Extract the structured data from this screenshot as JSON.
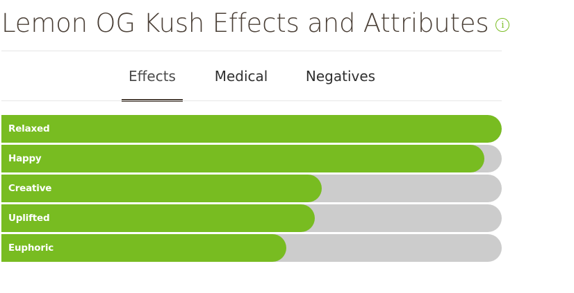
{
  "header": {
    "title": "Lemon OG Kush Effects and Attributes",
    "info_icon": "info-icon"
  },
  "tabs": [
    {
      "label": "Effects",
      "active": true
    },
    {
      "label": "Medical",
      "active": false
    },
    {
      "label": "Negatives",
      "active": false
    }
  ],
  "effects": [
    {
      "label": "Relaxed",
      "percent": 100
    },
    {
      "label": "Happy",
      "percent": 96.5
    },
    {
      "label": "Creative",
      "percent": 64
    },
    {
      "label": "Uplifted",
      "percent": 62.6
    },
    {
      "label": "Euphoric",
      "percent": 57
    }
  ],
  "colors": {
    "accent": "#78bc21",
    "track": "#cccccc",
    "title": "#4a3f36"
  }
}
